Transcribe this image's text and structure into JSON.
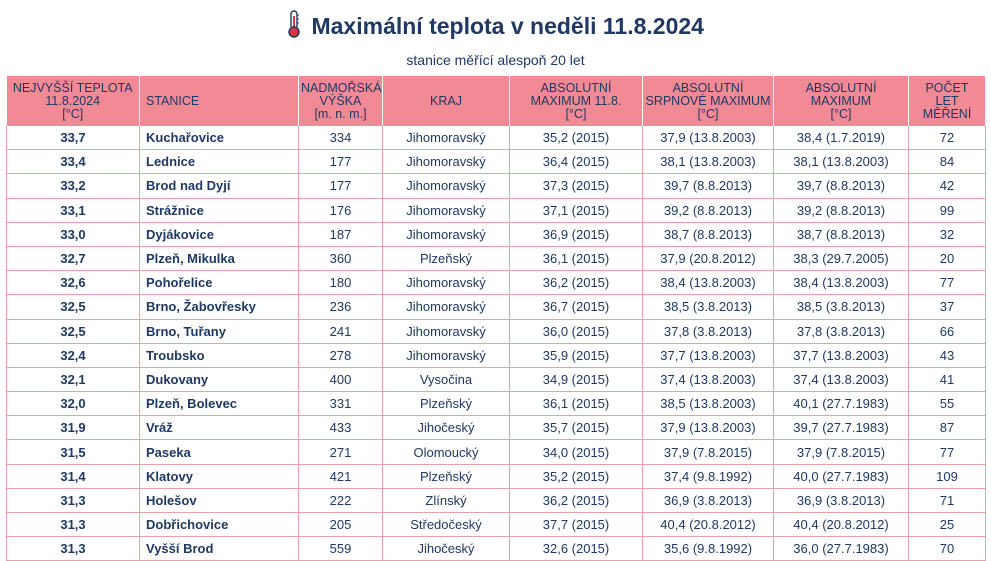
{
  "header": {
    "title": "Maximální teplota v neděli 11.8.2024",
    "subtitle": "stanice měřící alespoň 20 let",
    "icon": "thermometer-icon",
    "accent_color": "#f28a95",
    "text_color": "#1f3864"
  },
  "columns": [
    "NEJVYŠŠÍ TEPLOTA\n11.8.2024\n[°C]",
    "STANICE",
    "NADMOŘSKÁ\nVÝŠKA\n[m. n. m.]",
    "KRAJ",
    "ABSOLUTNÍ\nMAXIMUM 11.8.\n[°C]",
    "ABSOLUTNÍ\nSRPNOVÉ MAXIMUM\n[°C]",
    "ABSOLUTNÍ\nMAXIMUM\n[°C]",
    "POČET\nLET\nMĚŘENÍ"
  ],
  "rows": [
    [
      "33,7",
      "Kuchařovice",
      "334",
      "Jihomoravský",
      "35,2 (2015)",
      "37,9 (13.8.2003)",
      "38,4 (1.7.2019)",
      "72"
    ],
    [
      "33,4",
      "Lednice",
      "177",
      "Jihomoravský",
      "36,4 (2015)",
      "38,1 (13.8.2003)",
      "38,1 (13.8.2003)",
      "84"
    ],
    [
      "33,2",
      "Brod nad Dyjí",
      "177",
      "Jihomoravský",
      "37,3 (2015)",
      "39,7 (8.8.2013)",
      "39,7 (8.8.2013)",
      "42"
    ],
    [
      "33,1",
      "Strážnice",
      "176",
      "Jihomoravský",
      "37,1 (2015)",
      "39,2 (8.8.2013)",
      "39,2 (8.8.2013)",
      "99"
    ],
    [
      "33,0",
      "Dyjákovice",
      "187",
      "Jihomoravský",
      "36,9 (2015)",
      "38,7 (8.8.2013)",
      "38,7 (8.8.2013)",
      "32"
    ],
    [
      "32,7",
      "Plzeň, Mikulka",
      "360",
      "Plzeňský",
      "36,1 (2015)",
      "37,9 (20.8.2012)",
      "38,3 (29.7.2005)",
      "20"
    ],
    [
      "32,6",
      "Pohořelice",
      "180",
      "Jihomoravský",
      "36,2 (2015)",
      "38,4 (13.8.2003)",
      "38,4 (13.8.2003)",
      "77"
    ],
    [
      "32,5",
      "Brno, Žabovřesky",
      "236",
      "Jihomoravský",
      "36,7 (2015)",
      "38,5 (3.8.2013)",
      "38,5 (3.8.2013)",
      "37"
    ],
    [
      "32,5",
      "Brno, Tuřany",
      "241",
      "Jihomoravský",
      "36,0 (2015)",
      "37,8 (3.8.2013)",
      "37,8 (3.8.2013)",
      "66"
    ],
    [
      "32,4",
      "Troubsko",
      "278",
      "Jihomoravský",
      "35,9 (2015)",
      "37,7 (13.8.2003)",
      "37,7 (13.8.2003)",
      "43"
    ],
    [
      "32,1",
      "Dukovany",
      "400",
      "Vysočina",
      "34,9 (2015)",
      "37,4 (13.8.2003)",
      "37,4 (13.8.2003)",
      "41"
    ],
    [
      "32,0",
      "Plzeň, Bolevec",
      "331",
      "Plzeňský",
      "36,1 (2015)",
      "38,5 (13.8.2003)",
      "40,1 (27.7.1983)",
      "55"
    ],
    [
      "31,9",
      "Vráž",
      "433",
      "Jihočeský",
      "35,7 (2015)",
      "37,9 (13.8.2003)",
      "39,7 (27.7.1983)",
      "87"
    ],
    [
      "31,5",
      "Paseka",
      "271",
      "Olomoucký",
      "34,0 (2015)",
      "37,9 (7.8.2015)",
      "37,9 (7.8.2015)",
      "77"
    ],
    [
      "31,4",
      "Klatovy",
      "421",
      "Plzeňský",
      "35,2 (2015)",
      "37,4 (9.8.1992)",
      "40,0 (27.7.1983)",
      "109"
    ],
    [
      "31,3",
      "Holešov",
      "222",
      "Zlínský",
      "36,2 (2015)",
      "36,9 (3.8.2013)",
      "36,9 (3.8.2013)",
      "71"
    ],
    [
      "31,3",
      "Dobřichovice",
      "205",
      "Středočeský",
      "37,7 (2015)",
      "40,4 (20.8.2012)",
      "40,4 (20.8.2012)",
      "25"
    ],
    [
      "31,3",
      "Vyšší Brod",
      "559",
      "Jihočeský",
      "32,6 (2015)",
      "35,6 (9.8.1992)",
      "36,0 (27.7.1983)",
      "70"
    ]
  ]
}
